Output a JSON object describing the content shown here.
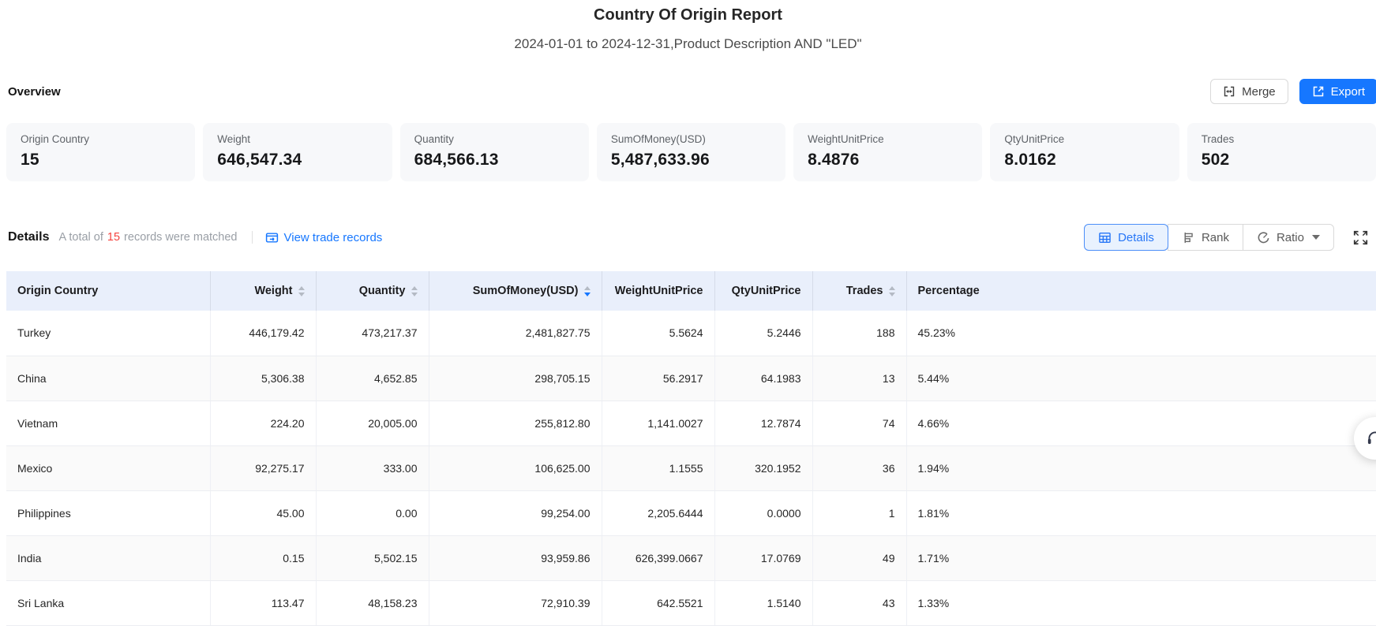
{
  "page": {
    "title": "Country Of Origin Report",
    "subtitle": "2024-01-01 to 2024-12-31,Product Description AND \"LED\""
  },
  "overview": {
    "heading": "Overview",
    "merge_label": "Merge",
    "export_label": "Export",
    "cards": [
      {
        "label": "Origin Country",
        "value": "15"
      },
      {
        "label": "Weight",
        "value": "646,547.34"
      },
      {
        "label": "Quantity",
        "value": "684,566.13"
      },
      {
        "label": "SumOfMoney(USD)",
        "value": "5,487,633.96"
      },
      {
        "label": "WeightUnitPrice",
        "value": "8.4876"
      },
      {
        "label": "QtyUnitPrice",
        "value": "8.0162"
      },
      {
        "label": "Trades",
        "value": "502"
      }
    ]
  },
  "details": {
    "heading": "Details",
    "match_prefix": "A total of",
    "match_count": "15",
    "match_suffix": "records were matched",
    "view_link": "View trade records",
    "tabs": [
      {
        "label": "Details",
        "active": true,
        "icon": "table-grid-icon"
      },
      {
        "label": "Rank",
        "active": false,
        "icon": "rank-bars-icon"
      },
      {
        "label": "Ratio",
        "active": false,
        "icon": "ratio-pie-icon",
        "has_dropdown": true
      }
    ]
  },
  "table": {
    "columns": [
      {
        "label": "Origin Country",
        "align": "left",
        "sortable": false
      },
      {
        "label": "Weight",
        "align": "right",
        "sortable": true
      },
      {
        "label": "Quantity",
        "align": "right",
        "sortable": true
      },
      {
        "label": "SumOfMoney(USD)",
        "align": "right",
        "sortable": true,
        "sort": "desc"
      },
      {
        "label": "WeightUnitPrice",
        "align": "right",
        "sortable": false
      },
      {
        "label": "QtyUnitPrice",
        "align": "right",
        "sortable": false
      },
      {
        "label": "Trades",
        "align": "right",
        "sortable": true
      },
      {
        "label": "Percentage",
        "align": "left",
        "sortable": false
      }
    ],
    "rows": [
      [
        "Turkey",
        "446,179.42",
        "473,217.37",
        "2,481,827.75",
        "5.5624",
        "5.2446",
        "188",
        "45.23%"
      ],
      [
        "China",
        "5,306.38",
        "4,652.85",
        "298,705.15",
        "56.2917",
        "64.1983",
        "13",
        "5.44%"
      ],
      [
        "Vietnam",
        "224.20",
        "20,005.00",
        "255,812.80",
        "1,141.0027",
        "12.7874",
        "74",
        "4.66%"
      ],
      [
        "Mexico",
        "92,275.17",
        "333.00",
        "106,625.00",
        "1.1555",
        "320.1952",
        "36",
        "1.94%"
      ],
      [
        "Philippines",
        "45.00",
        "0.00",
        "99,254.00",
        "2,205.6444",
        "0.0000",
        "1",
        "1.81%"
      ],
      [
        "India",
        "0.15",
        "5,502.15",
        "93,959.86",
        "626,399.0667",
        "17.0769",
        "49",
        "1.71%"
      ],
      [
        "Sri Lanka",
        "113.47",
        "48,158.23",
        "72,910.39",
        "642.5521",
        "1.5140",
        "43",
        "1.33%"
      ]
    ]
  },
  "icons": {
    "merge": "merge-cells-icon",
    "export": "export-arrow-icon",
    "view_records": "browser-arrow-icon",
    "fullscreen": "expand-corners-icon",
    "sort": "up-down-carets",
    "floating": "headset-icon"
  },
  "colors": {
    "accent_blue": "#1677ff",
    "active_tab_bg": "#e9f2fe",
    "table_header_bg": "#e9effb",
    "alt_row_bg": "#fafafa",
    "match_count_red": "#f5433f",
    "muted_text": "#9a9fa6"
  }
}
